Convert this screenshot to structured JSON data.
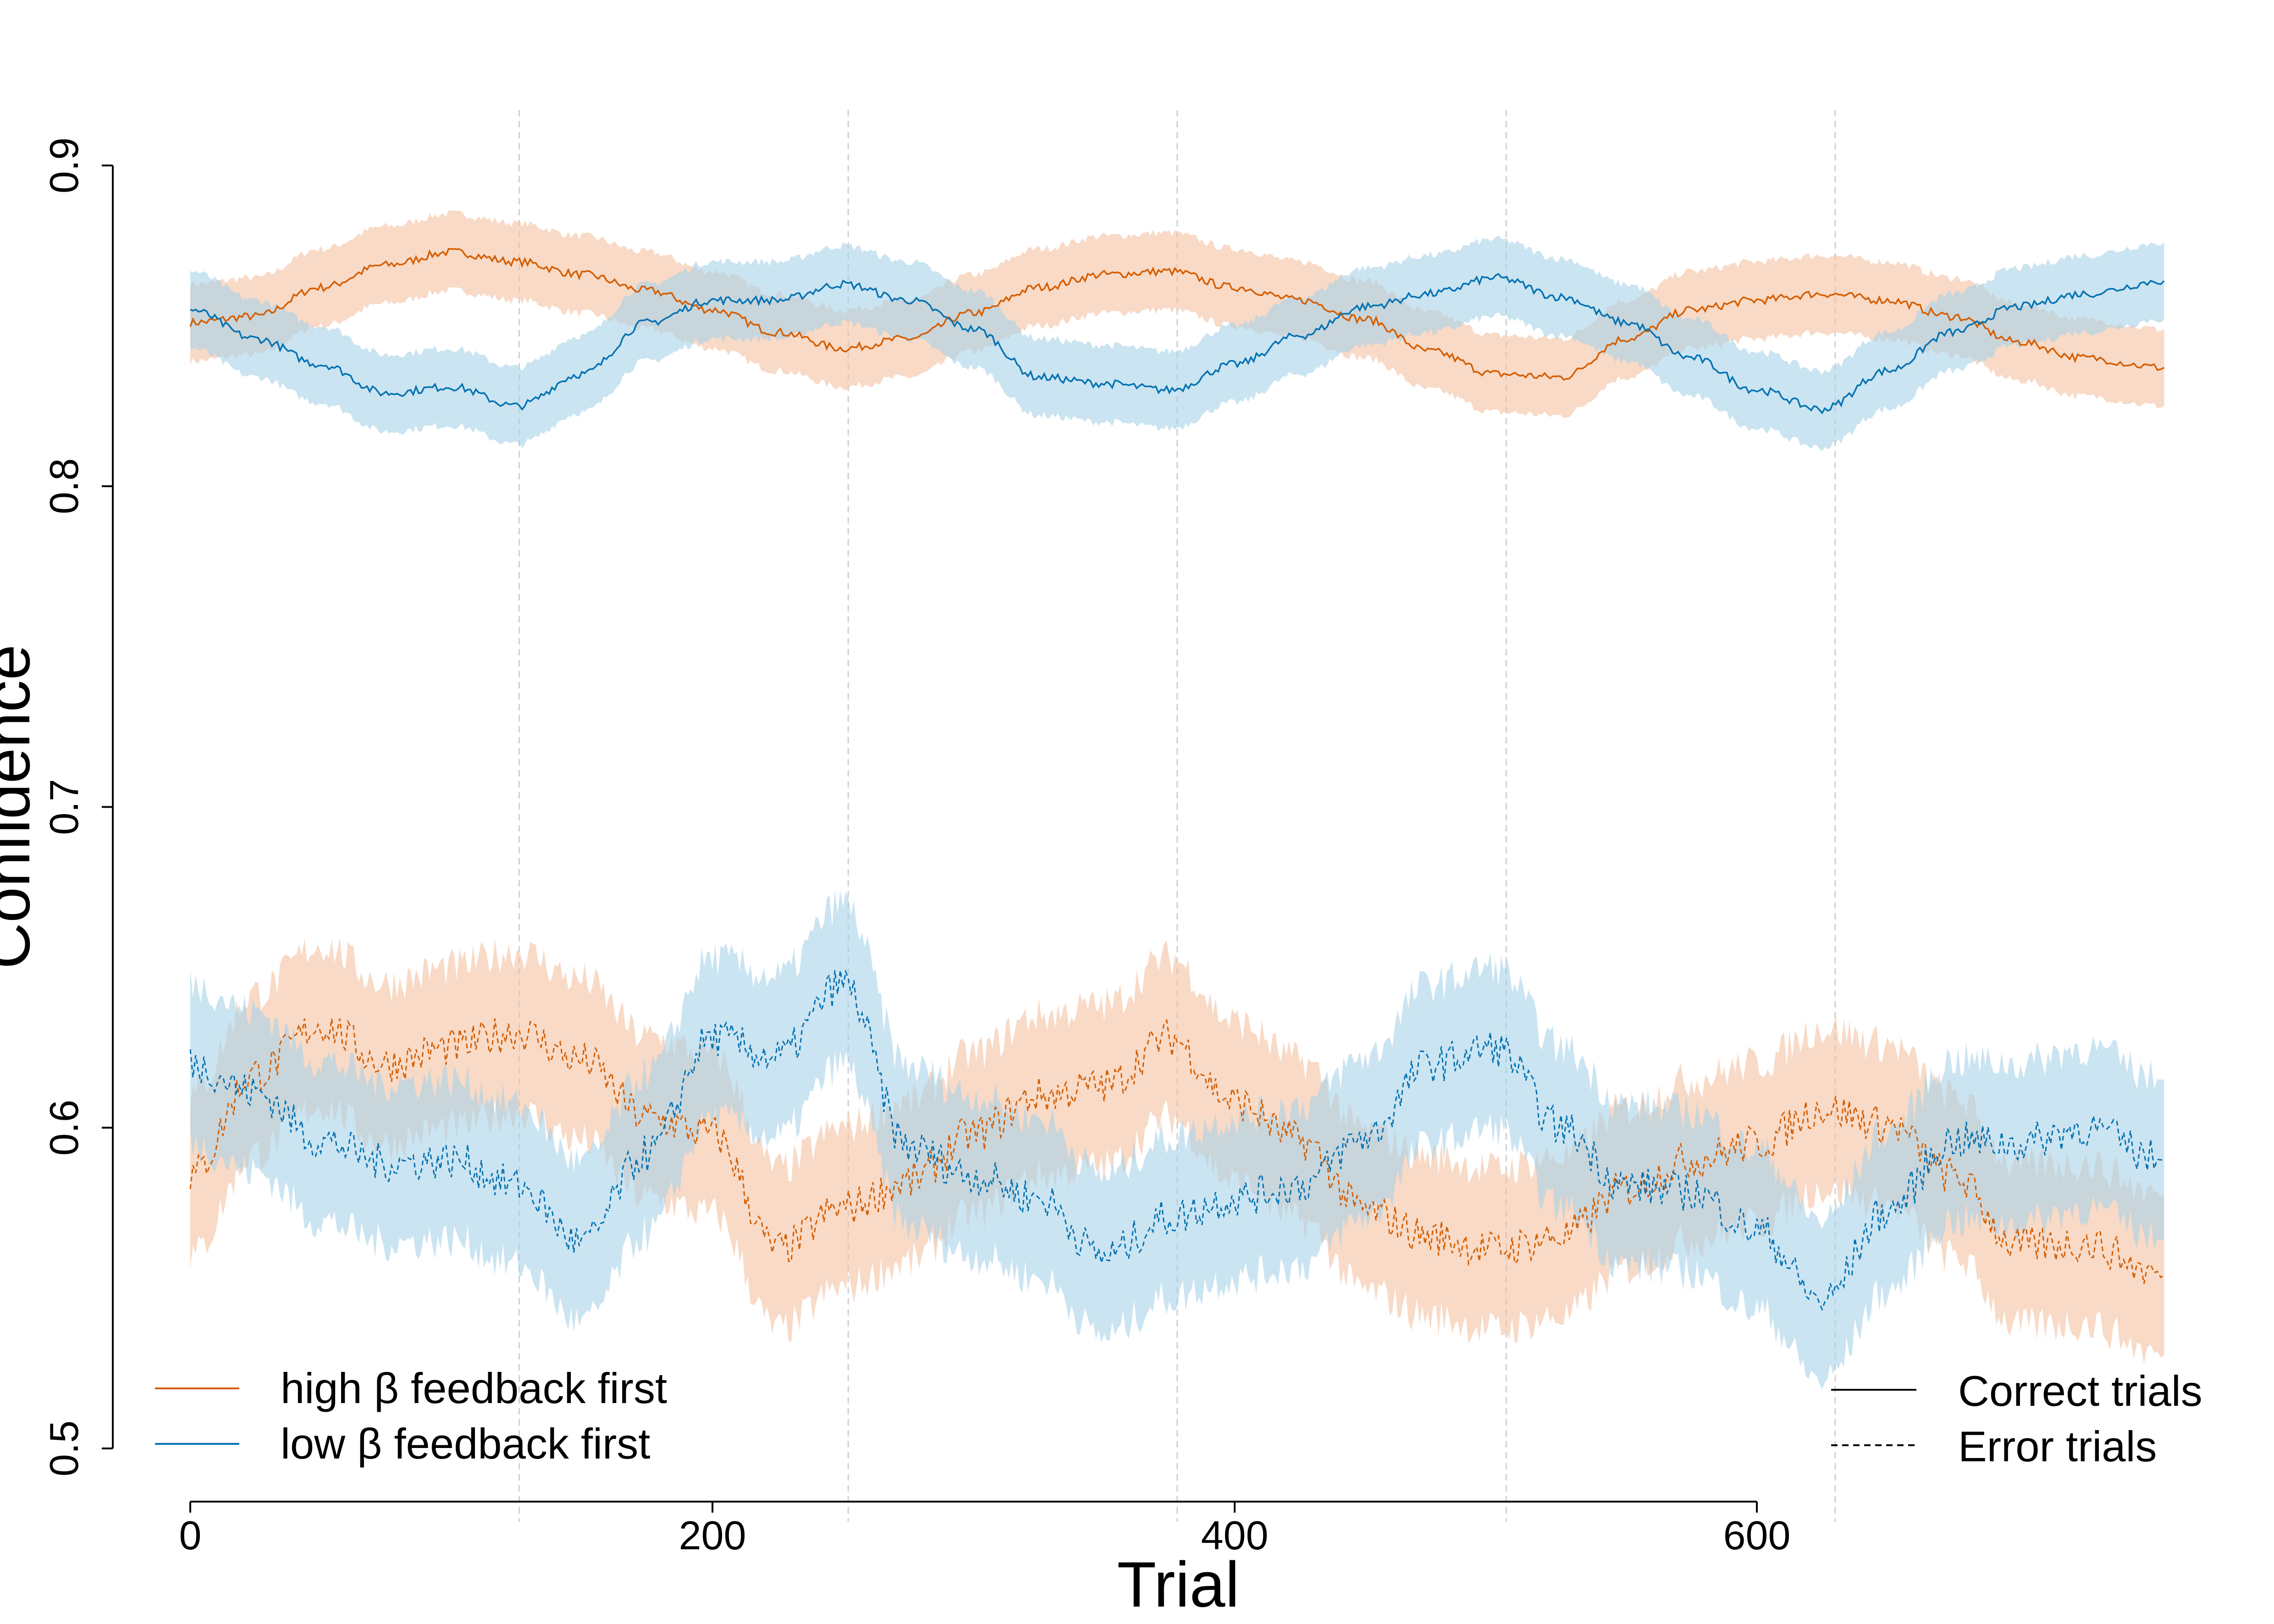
{
  "chart_data": {
    "type": "line",
    "xlabel": "Trial",
    "ylabel": "Confidence",
    "xlim": [
      0,
      756
    ],
    "ylim": [
      0.5,
      0.9
    ],
    "x_ticks": [
      0,
      200,
      400,
      600
    ],
    "x_tick_labels": [
      "0",
      "200",
      "400",
      "600"
    ],
    "y_ticks": [
      0.5,
      0.6,
      0.7,
      0.8,
      0.9
    ],
    "y_tick_labels": [
      "0.5",
      "0.6",
      "0.7",
      "0.8",
      "0.9"
    ],
    "block_boundaries": [
      126,
      252,
      378,
      504,
      630
    ],
    "grid": false,
    "colors": {
      "high": "#D55E00",
      "low": "#0072B2",
      "high_band": "#F4C1A1",
      "low_band": "#A8D2E8"
    },
    "legend_groups": [
      {
        "placement": "bottom-left",
        "items": [
          {
            "label": "high β feedback first",
            "style": "solid",
            "color": "#D55E00"
          },
          {
            "label": "low β feedback first",
            "style": "solid",
            "color": "#0072B2"
          }
        ]
      },
      {
        "placement": "bottom-right",
        "items": [
          {
            "label": "Correct trials",
            "style": "solid",
            "color": "#000000"
          },
          {
            "label": "Error trials",
            "style": "dashed",
            "color": "#000000"
          }
        ]
      }
    ],
    "series": [
      {
        "name": "high β feedback first",
        "trials": "Correct trials",
        "color": "#D55E00",
        "band_color": "#F4C1A1",
        "dash": false,
        "band_halfwidth": 0.012,
        "x": [
          0,
          25,
          50,
          75,
          100,
          125,
          150,
          175,
          200,
          225,
          250,
          275,
          300,
          325,
          350,
          375,
          400,
          425,
          450,
          475,
          500,
          525,
          550,
          575,
          600,
          625,
          650,
          675,
          700,
          725,
          756
        ],
        "y": [
          0.851,
          0.853,
          0.862,
          0.869,
          0.873,
          0.87,
          0.866,
          0.861,
          0.855,
          0.848,
          0.843,
          0.846,
          0.854,
          0.862,
          0.866,
          0.867,
          0.862,
          0.858,
          0.852,
          0.842,
          0.835,
          0.834,
          0.846,
          0.855,
          0.858,
          0.86,
          0.858,
          0.853,
          0.845,
          0.84,
          0.837
        ]
      },
      {
        "name": "low β feedback first",
        "trials": "Correct trials",
        "color": "#0072B2",
        "band_color": "#A8D2E8",
        "dash": false,
        "band_halfwidth": 0.012,
        "x": [
          0,
          25,
          50,
          75,
          100,
          125,
          150,
          175,
          200,
          225,
          250,
          275,
          300,
          325,
          350,
          375,
          400,
          425,
          450,
          475,
          500,
          525,
          550,
          575,
          600,
          625,
          650,
          675,
          700,
          725,
          756
        ],
        "y": [
          0.855,
          0.846,
          0.838,
          0.829,
          0.831,
          0.825,
          0.835,
          0.851,
          0.858,
          0.858,
          0.863,
          0.858,
          0.849,
          0.834,
          0.832,
          0.83,
          0.838,
          0.847,
          0.856,
          0.86,
          0.865,
          0.859,
          0.851,
          0.84,
          0.83,
          0.824,
          0.836,
          0.848,
          0.856,
          0.86,
          0.864
        ]
      },
      {
        "name": "high β feedback first",
        "trials": "Error trials",
        "color": "#D55E00",
        "band_color": "#F4C1A1",
        "dash": true,
        "band_halfwidth": 0.025,
        "x": [
          0,
          25,
          50,
          75,
          100,
          125,
          150,
          175,
          200,
          225,
          250,
          275,
          300,
          325,
          350,
          375,
          400,
          425,
          450,
          475,
          500,
          525,
          550,
          575,
          600,
          625,
          650,
          675,
          700,
          725,
          756
        ],
        "y": [
          0.585,
          0.617,
          0.632,
          0.62,
          0.625,
          0.63,
          0.621,
          0.603,
          0.598,
          0.562,
          0.575,
          0.583,
          0.598,
          0.61,
          0.613,
          0.628,
          0.608,
          0.596,
          0.574,
          0.566,
          0.562,
          0.566,
          0.581,
          0.59,
          0.595,
          0.606,
          0.601,
          0.585,
          0.563,
          0.564,
          0.554
        ]
      },
      {
        "name": "low β feedback first",
        "trials": "Error trials",
        "color": "#0072B2",
        "band_color": "#A8D2E8",
        "dash": true,
        "band_halfwidth": 0.025,
        "x": [
          0,
          25,
          50,
          75,
          100,
          125,
          150,
          175,
          200,
          225,
          250,
          275,
          300,
          325,
          350,
          375,
          400,
          425,
          450,
          475,
          500,
          525,
          550,
          575,
          600,
          625,
          650,
          675,
          700,
          725,
          756
        ],
        "y": [
          0.62,
          0.611,
          0.596,
          0.589,
          0.59,
          0.582,
          0.564,
          0.592,
          0.628,
          0.622,
          0.645,
          0.594,
          0.585,
          0.578,
          0.56,
          0.572,
          0.578,
          0.582,
          0.597,
          0.62,
          0.625,
          0.6,
          0.582,
          0.58,
          0.568,
          0.546,
          0.574,
          0.596,
          0.595,
          0.6,
          0.59
        ]
      }
    ]
  }
}
